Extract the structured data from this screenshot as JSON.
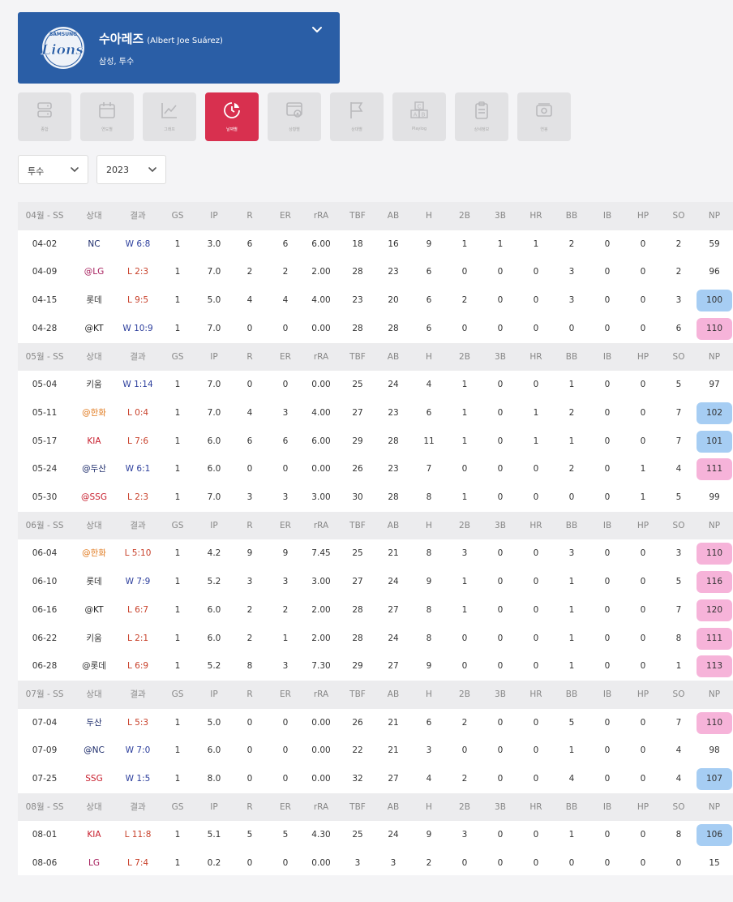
{
  "player": {
    "name": "수아레즈",
    "name_en": "(Albert Joe Suárez)",
    "team_position": "삼성, 투수",
    "logo_text": "Lions",
    "logo_ring_text": "SAMSUNG"
  },
  "tabs": [
    {
      "label": "종합",
      "icon": "server-icon",
      "active": false
    },
    {
      "label": "연도별",
      "icon": "calendar-icon",
      "active": false
    },
    {
      "label": "그래프",
      "icon": "line-chart-icon",
      "active": false
    },
    {
      "label": "날짜별",
      "icon": "clock-chart-icon",
      "active": true
    },
    {
      "label": "상황별",
      "icon": "settings-window-icon",
      "active": false
    },
    {
      "label": "상대별",
      "icon": "flag-icon",
      "active": false
    },
    {
      "label": "Playlog",
      "icon": "abc-blocks-icon",
      "active": false
    },
    {
      "label": "상세정보",
      "icon": "clipboard-icon",
      "active": false
    },
    {
      "label": "연봉",
      "icon": "money-icon",
      "active": false
    }
  ],
  "filters": {
    "position": "투수",
    "year": "2023"
  },
  "colors": {
    "brand": "#2a5ea6",
    "active_tab": "#d8304f",
    "win": "#2c3e9c",
    "loss": "#c8402a",
    "np_high": "#f6b3d9",
    "np_low": "#a6cdf3"
  },
  "columns": [
    "상대",
    "결과",
    "GS",
    "IP",
    "R",
    "ER",
    "rRA",
    "TBF",
    "AB",
    "H",
    "2B",
    "3B",
    "HR",
    "BB",
    "IB",
    "HP",
    "SO",
    "NP"
  ],
  "months": [
    {
      "label": "04월 - SS",
      "games": [
        {
          "date": "04-02",
          "opp": "NC",
          "opp_color": "#1d2c6b",
          "res": "W",
          "score": "6:8",
          "gs": "1",
          "ip": "3.0",
          "r": "6",
          "er": "6",
          "rra": "6.00",
          "tbf": "18",
          "ab": "16",
          "h": "9",
          "b2": "1",
          "b3": "1",
          "hr": "1",
          "bb": "2",
          "ib": "0",
          "hp": "0",
          "so": "2",
          "np": "59",
          "bar": null
        },
        {
          "date": "04-09",
          "opp": "@LG",
          "opp_color": "#a7215e",
          "res": "L",
          "score": "2:3",
          "gs": "1",
          "ip": "7.0",
          "r": "2",
          "er": "2",
          "rra": "2.00",
          "tbf": "28",
          "ab": "23",
          "h": "6",
          "b2": "0",
          "b3": "0",
          "hr": "0",
          "bb": "3",
          "ib": "0",
          "hp": "0",
          "so": "2",
          "np": "96",
          "bar": null
        },
        {
          "date": "04-15",
          "opp": "롯데",
          "opp_color": "#333333",
          "res": "L",
          "score": "9:5",
          "gs": "1",
          "ip": "5.0",
          "r": "4",
          "er": "4",
          "rra": "4.00",
          "tbf": "23",
          "ab": "20",
          "h": "6",
          "b2": "2",
          "b3": "0",
          "hr": "0",
          "bb": "3",
          "ib": "0",
          "hp": "0",
          "so": "3",
          "np": "100",
          "bar": "blue"
        },
        {
          "date": "04-28",
          "opp": "@KT",
          "opp_color": "#222222",
          "res": "W",
          "score": "10:9",
          "gs": "1",
          "ip": "7.0",
          "r": "0",
          "er": "0",
          "rra": "0.00",
          "tbf": "28",
          "ab": "28",
          "h": "6",
          "b2": "0",
          "b3": "0",
          "hr": "0",
          "bb": "0",
          "ib": "0",
          "hp": "0",
          "so": "6",
          "np": "110",
          "bar": "pink"
        }
      ]
    },
    {
      "label": "05월 - SS",
      "games": [
        {
          "date": "05-04",
          "opp": "키움",
          "opp_color": "#333333",
          "res": "W",
          "score": "1:14",
          "gs": "1",
          "ip": "7.0",
          "r": "0",
          "er": "0",
          "rra": "0.00",
          "tbf": "25",
          "ab": "24",
          "h": "4",
          "b2": "1",
          "b3": "0",
          "hr": "0",
          "bb": "1",
          "ib": "0",
          "hp": "0",
          "so": "5",
          "np": "97",
          "bar": null
        },
        {
          "date": "05-11",
          "opp": "@한화",
          "opp_color": "#e07a1f",
          "res": "L",
          "score": "0:4",
          "gs": "1",
          "ip": "7.0",
          "r": "4",
          "er": "3",
          "rra": "4.00",
          "tbf": "27",
          "ab": "23",
          "h": "6",
          "b2": "1",
          "b3": "0",
          "hr": "1",
          "bb": "2",
          "ib": "0",
          "hp": "0",
          "so": "7",
          "np": "102",
          "bar": "blue"
        },
        {
          "date": "05-17",
          "opp": "KIA",
          "opp_color": "#c8202f",
          "res": "L",
          "score": "7:6",
          "gs": "1",
          "ip": "6.0",
          "r": "6",
          "er": "6",
          "rra": "6.00",
          "tbf": "29",
          "ab": "28",
          "h": "11",
          "b2": "1",
          "b3": "0",
          "hr": "1",
          "bb": "1",
          "ib": "0",
          "hp": "0",
          "so": "7",
          "np": "101",
          "bar": "blue"
        },
        {
          "date": "05-24",
          "opp": "@두산",
          "opp_color": "#1d2c6b",
          "res": "W",
          "score": "6:1",
          "gs": "1",
          "ip": "6.0",
          "r": "0",
          "er": "0",
          "rra": "0.00",
          "tbf": "26",
          "ab": "23",
          "h": "7",
          "b2": "0",
          "b3": "0",
          "hr": "0",
          "bb": "2",
          "ib": "0",
          "hp": "1",
          "so": "4",
          "np": "111",
          "bar": "pink"
        },
        {
          "date": "05-30",
          "opp": "@SSG",
          "opp_color": "#c8202f",
          "res": "L",
          "score": "2:3",
          "gs": "1",
          "ip": "7.0",
          "r": "3",
          "er": "3",
          "rra": "3.00",
          "tbf": "30",
          "ab": "28",
          "h": "8",
          "b2": "1",
          "b3": "0",
          "hr": "0",
          "bb": "0",
          "ib": "0",
          "hp": "1",
          "so": "5",
          "np": "99",
          "bar": null
        }
      ]
    },
    {
      "label": "06월 - SS",
      "games": [
        {
          "date": "06-04",
          "opp": "@한화",
          "opp_color": "#e07a1f",
          "res": "L",
          "score": "5:10",
          "gs": "1",
          "ip": "4.2",
          "r": "9",
          "er": "9",
          "rra": "7.45",
          "tbf": "25",
          "ab": "21",
          "h": "8",
          "b2": "3",
          "b3": "0",
          "hr": "0",
          "bb": "3",
          "ib": "0",
          "hp": "0",
          "so": "3",
          "np": "110",
          "bar": "pink"
        },
        {
          "date": "06-10",
          "opp": "롯데",
          "opp_color": "#333333",
          "res": "W",
          "score": "7:9",
          "gs": "1",
          "ip": "5.2",
          "r": "3",
          "er": "3",
          "rra": "3.00",
          "tbf": "27",
          "ab": "24",
          "h": "9",
          "b2": "1",
          "b3": "0",
          "hr": "0",
          "bb": "1",
          "ib": "0",
          "hp": "0",
          "so": "5",
          "np": "116",
          "bar": "pink"
        },
        {
          "date": "06-16",
          "opp": "@KT",
          "opp_color": "#222222",
          "res": "L",
          "score": "6:7",
          "gs": "1",
          "ip": "6.0",
          "r": "2",
          "er": "2",
          "rra": "2.00",
          "tbf": "28",
          "ab": "27",
          "h": "8",
          "b2": "1",
          "b3": "0",
          "hr": "0",
          "bb": "1",
          "ib": "0",
          "hp": "0",
          "so": "7",
          "np": "120",
          "bar": "pink"
        },
        {
          "date": "06-22",
          "opp": "키움",
          "opp_color": "#333333",
          "res": "L",
          "score": "2:1",
          "gs": "1",
          "ip": "6.0",
          "r": "2",
          "er": "1",
          "rra": "2.00",
          "tbf": "28",
          "ab": "24",
          "h": "8",
          "b2": "0",
          "b3": "0",
          "hr": "0",
          "bb": "1",
          "ib": "0",
          "hp": "0",
          "so": "8",
          "np": "111",
          "bar": "pink"
        },
        {
          "date": "06-28",
          "opp": "@롯데",
          "opp_color": "#333333",
          "res": "L",
          "score": "6:9",
          "gs": "1",
          "ip": "5.2",
          "r": "8",
          "er": "3",
          "rra": "7.30",
          "tbf": "29",
          "ab": "27",
          "h": "9",
          "b2": "0",
          "b3": "0",
          "hr": "0",
          "bb": "1",
          "ib": "0",
          "hp": "0",
          "so": "1",
          "np": "113",
          "bar": "pink"
        }
      ]
    },
    {
      "label": "07월 - SS",
      "games": [
        {
          "date": "07-04",
          "opp": "두산",
          "opp_color": "#1d2c6b",
          "res": "L",
          "score": "5:3",
          "gs": "1",
          "ip": "5.0",
          "r": "0",
          "er": "0",
          "rra": "0.00",
          "tbf": "26",
          "ab": "21",
          "h": "6",
          "b2": "2",
          "b3": "0",
          "hr": "0",
          "bb": "5",
          "ib": "0",
          "hp": "0",
          "so": "7",
          "np": "110",
          "bar": "pink"
        },
        {
          "date": "07-09",
          "opp": "@NC",
          "opp_color": "#1d2c6b",
          "res": "W",
          "score": "7:0",
          "gs": "1",
          "ip": "6.0",
          "r": "0",
          "er": "0",
          "rra": "0.00",
          "tbf": "22",
          "ab": "21",
          "h": "3",
          "b2": "0",
          "b3": "0",
          "hr": "0",
          "bb": "1",
          "ib": "0",
          "hp": "0",
          "so": "4",
          "np": "98",
          "bar": null
        },
        {
          "date": "07-25",
          "opp": "SSG",
          "opp_color": "#c8202f",
          "res": "W",
          "score": "1:5",
          "gs": "1",
          "ip": "8.0",
          "r": "0",
          "er": "0",
          "rra": "0.00",
          "tbf": "32",
          "ab": "27",
          "h": "4",
          "b2": "2",
          "b3": "0",
          "hr": "0",
          "bb": "4",
          "ib": "0",
          "hp": "0",
          "so": "4",
          "np": "107",
          "bar": "blue"
        }
      ]
    },
    {
      "label": "08월 - SS",
      "games": [
        {
          "date": "08-01",
          "opp": "KIA",
          "opp_color": "#c8202f",
          "res": "L",
          "score": "11:8",
          "gs": "1",
          "ip": "5.1",
          "r": "5",
          "er": "5",
          "rra": "4.30",
          "tbf": "25",
          "ab": "24",
          "h": "9",
          "b2": "3",
          "b3": "0",
          "hr": "0",
          "bb": "1",
          "ib": "0",
          "hp": "0",
          "so": "8",
          "np": "106",
          "bar": "blue"
        },
        {
          "date": "08-06",
          "opp": "LG",
          "opp_color": "#a7215e",
          "res": "L",
          "score": "7:4",
          "gs": "1",
          "ip": "0.2",
          "r": "0",
          "er": "0",
          "rra": "0.00",
          "tbf": "3",
          "ab": "3",
          "h": "2",
          "b2": "0",
          "b3": "0",
          "hr": "0",
          "bb": "0",
          "ib": "0",
          "hp": "0",
          "so": "0",
          "np": "15",
          "bar": null
        }
      ]
    }
  ]
}
